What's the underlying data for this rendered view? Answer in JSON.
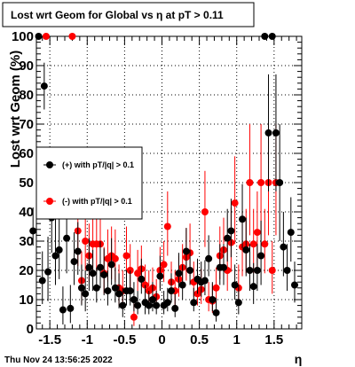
{
  "chart_data": {
    "type": "scatter",
    "title": "Lost wrt Geom for Global vs   η at pT > 0.11",
    "xlabel": "η",
    "ylabel": "Lost wrt Geom (%)",
    "xlim": [
      -1.68,
      1.87
    ],
    "ylim": [
      0,
      100
    ],
    "xticks": [
      -1.5,
      -1,
      -0.5,
      0,
      0.5,
      1,
      1.5
    ],
    "xtick_labels": [
      "-1.5",
      "-1",
      "-0.5",
      "0",
      "0.5",
      "1",
      "1.5"
    ],
    "yticks": [
      0,
      10,
      20,
      30,
      40,
      50,
      60,
      70,
      80,
      90,
      100
    ],
    "ytick_labels": [
      "0",
      "10",
      "20",
      "30",
      "40",
      "50",
      "60",
      "70",
      "80",
      "90",
      "100"
    ],
    "grid": true,
    "legend_position": "left",
    "timestamp": "Thu Nov 24 13:56:25 2022",
    "series": [
      {
        "name": "(+) with pT/|q| > 0.1",
        "color": "#000000",
        "x": [
          -1.725,
          -1.65,
          -1.6,
          -1.575,
          -1.525,
          -1.475,
          -1.425,
          -1.375,
          -1.325,
          -1.275,
          -1.225,
          -1.175,
          -1.125,
          -1.075,
          -1.025,
          -0.975,
          -0.925,
          -0.875,
          -0.825,
          -0.775,
          -0.725,
          -0.675,
          -0.625,
          -0.575,
          -0.525,
          -0.475,
          -0.425,
          -0.375,
          -0.325,
          -0.275,
          -0.225,
          -0.175,
          -0.125,
          -0.075,
          -0.025,
          0.025,
          0.075,
          0.125,
          0.175,
          0.225,
          0.275,
          0.325,
          0.375,
          0.425,
          0.475,
          0.525,
          0.575,
          0.625,
          0.675,
          0.725,
          0.775,
          0.825,
          0.875,
          0.925,
          0.975,
          1.025,
          1.075,
          1.125,
          1.175,
          1.225,
          1.275,
          1.325,
          1.375,
          1.425,
          1.475,
          1.525,
          1.575,
          1.625,
          1.675,
          1.725,
          1.775
        ],
        "y": [
          33.5,
          100,
          16.5,
          83,
          19.5,
          38,
          25,
          27,
          6.5,
          31,
          7,
          23,
          26.5,
          14,
          12,
          21,
          19,
          14,
          21,
          18.5,
          13,
          22,
          14,
          12,
          8,
          13,
          13,
          10,
          8,
          17,
          9,
          8,
          10,
          8,
          18,
          8,
          9,
          13,
          7,
          19,
          15,
          26.5,
          20,
          9,
          17,
          16,
          16.5,
          24,
          10,
          5.5,
          21,
          21,
          31,
          33.5,
          15,
          9,
          37.5,
          27,
          20,
          14.5,
          20,
          25,
          100,
          67,
          100,
          67,
          50,
          28,
          20,
          33,
          15
        ],
        "err_lo": [
          5,
          0,
          8,
          8,
          10,
          12,
          10,
          10,
          5,
          12,
          5,
          8,
          8,
          6,
          6,
          8,
          6,
          5,
          7,
          7,
          5,
          7,
          5,
          5,
          4,
          5,
          5,
          4,
          3,
          5,
          4,
          3,
          4,
          3,
          5,
          3,
          3,
          4,
          3,
          5,
          5,
          6,
          5,
          3,
          5,
          5,
          5,
          6,
          4,
          3,
          6,
          6,
          8,
          9,
          5,
          4,
          10,
          9,
          7,
          6,
          7,
          10,
          0,
          20,
          0,
          20,
          20,
          10,
          7,
          10,
          6
        ],
        "err_hi": [
          8,
          0,
          10,
          8,
          12,
          14,
          14,
          12,
          8,
          14,
          8,
          10,
          10,
          8,
          8,
          10,
          8,
          7,
          9,
          9,
          7,
          9,
          7,
          7,
          6,
          7,
          7,
          6,
          5,
          7,
          6,
          5,
          6,
          5,
          7,
          5,
          5,
          6,
          5,
          7,
          7,
          8,
          7,
          5,
          7,
          7,
          7,
          8,
          6,
          5,
          8,
          8,
          10,
          11,
          7,
          6,
          12,
          11,
          9,
          8,
          9,
          12,
          0,
          20,
          0,
          20,
          20,
          12,
          9,
          12,
          8
        ]
      },
      {
        "name": "(-) with pT/|q| > 0.1",
        "color": "#ff0000",
        "x": [
          -1.55,
          -1.2,
          -1.125,
          -1.075,
          -1.025,
          -0.975,
          -0.925,
          -0.875,
          -0.825,
          -0.775,
          -0.725,
          -0.675,
          -0.625,
          -0.575,
          -0.525,
          -0.475,
          -0.425,
          -0.375,
          -0.325,
          -0.275,
          -0.225,
          -0.175,
          -0.125,
          -0.075,
          -0.025,
          0.025,
          0.075,
          0.125,
          0.175,
          0.225,
          0.275,
          0.325,
          0.375,
          0.425,
          0.475,
          0.525,
          0.575,
          0.625,
          0.675,
          0.725,
          0.775,
          0.825,
          0.875,
          0.925,
          0.975,
          1.025,
          1.075,
          1.125,
          1.175,
          1.225,
          1.275,
          1.325,
          1.375,
          1.425,
          1.475,
          1.525
        ],
        "y": [
          100,
          100,
          33.5,
          16.5,
          30,
          25,
          29,
          29,
          29,
          19,
          24,
          25,
          24,
          14,
          13,
          25,
          20,
          4,
          19,
          20.5,
          15,
          13,
          14,
          11,
          20,
          22,
          35,
          16,
          13,
          17,
          21,
          24.5,
          26,
          16,
          12,
          13.5,
          40,
          10,
          9.5,
          14,
          25,
          27,
          20,
          29.5,
          43,
          14,
          28,
          29,
          50,
          29,
          33,
          50,
          29,
          50,
          20,
          50
        ],
        "err_lo": [
          0,
          0,
          12,
          8,
          10,
          9,
          9,
          9,
          9,
          7,
          8,
          8,
          8,
          6,
          5,
          8,
          7,
          3,
          6,
          6,
          5,
          5,
          5,
          4,
          6,
          6,
          10,
          5,
          5,
          6,
          6,
          8,
          8,
          5,
          4,
          5,
          12,
          4,
          4,
          5,
          8,
          9,
          7,
          10,
          14,
          6,
          10,
          10,
          18,
          10,
          12,
          18,
          10,
          18,
          8,
          18
        ],
        "err_hi": [
          0,
          0,
          14,
          10,
          12,
          11,
          11,
          11,
          11,
          9,
          10,
          10,
          10,
          8,
          7,
          10,
          9,
          5,
          8,
          8,
          7,
          7,
          7,
          6,
          8,
          8,
          12,
          7,
          7,
          8,
          8,
          10,
          10,
          7,
          6,
          7,
          14,
          6,
          6,
          7,
          10,
          11,
          9,
          12,
          16,
          8,
          12,
          12,
          20,
          12,
          14,
          20,
          12,
          20,
          10,
          20
        ]
      }
    ]
  }
}
